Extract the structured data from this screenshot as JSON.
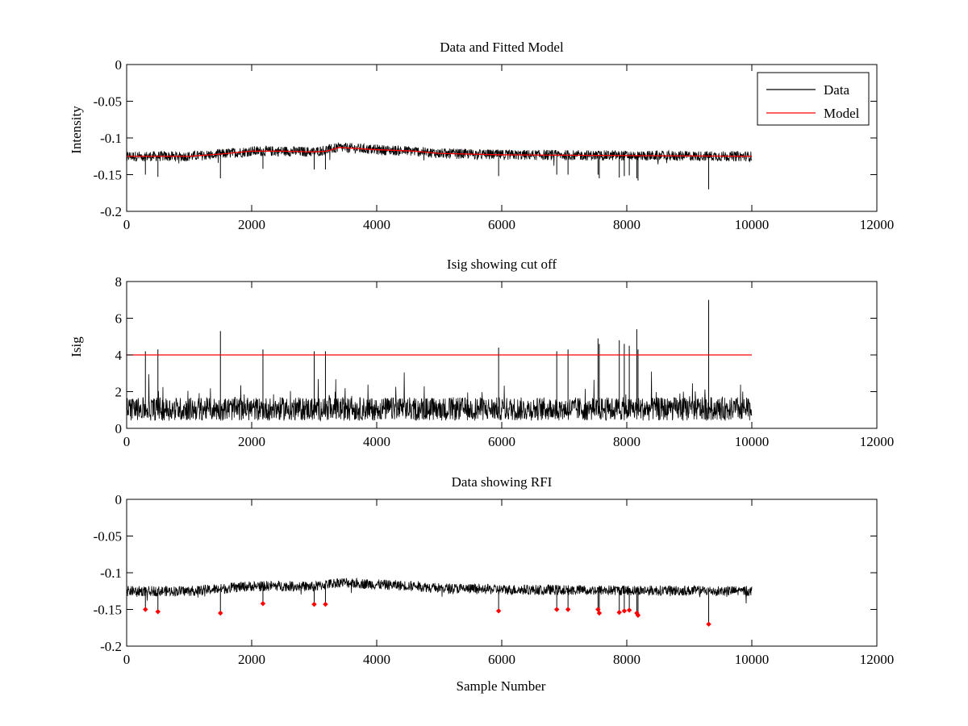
{
  "figure": {
    "xlabel": "Sample Number"
  },
  "chart_data": [
    {
      "type": "line",
      "title": "Data and Fitted Model",
      "xlabel": "",
      "ylabel": "Intensity",
      "xlim": [
        0,
        12000
      ],
      "ylim": [
        -0.2,
        0
      ],
      "xticks": [
        0,
        2000,
        4000,
        6000,
        8000,
        10000,
        12000
      ],
      "yticks": [
        0,
        -0.05,
        -0.1,
        -0.15,
        -0.2
      ],
      "xtick_labels": [
        "0",
        "2000",
        "4000",
        "6000",
        "8000",
        "10000",
        "12000"
      ],
      "ytick_labels": [
        "0",
        "-0.05",
        "-0.1",
        "-0.15",
        "-0.2"
      ],
      "legend": {
        "placement": "top-right",
        "entries": [
          "Data",
          "Model"
        ]
      },
      "series": [
        {
          "name": "Data",
          "color": "#000000",
          "render": "noise",
          "x_range": [
            0,
            10000
          ],
          "baseline": [
            [
              0,
              -0.125
            ],
            [
              1000,
              -0.125
            ],
            [
              1500,
              -0.122
            ],
            [
              2000,
              -0.118
            ],
            [
              2500,
              -0.118
            ],
            [
              3000,
              -0.119
            ],
            [
              3400,
              -0.113
            ],
            [
              4000,
              -0.116
            ],
            [
              4600,
              -0.118
            ],
            [
              5000,
              -0.121
            ],
            [
              6000,
              -0.123
            ],
            [
              8000,
              -0.124
            ],
            [
              10000,
              -0.125
            ]
          ],
          "noise_amplitude": 0.007,
          "spikes": [
            [
              300,
              -0.15
            ],
            [
              500,
              -0.153
            ],
            [
              1500,
              -0.155
            ],
            [
              2180,
              -0.142
            ],
            [
              3000,
              -0.143
            ],
            [
              3180,
              -0.143
            ],
            [
              5950,
              -0.152
            ],
            [
              6880,
              -0.15
            ],
            [
              7060,
              -0.15
            ],
            [
              7540,
              -0.15
            ],
            [
              7560,
              -0.155
            ],
            [
              7880,
              -0.154
            ],
            [
              7960,
              -0.152
            ],
            [
              8040,
              -0.151
            ],
            [
              8160,
              -0.155
            ],
            [
              8180,
              -0.158
            ],
            [
              9310,
              -0.17
            ]
          ]
        },
        {
          "name": "Model",
          "color": "#ff0000",
          "x": [
            0,
            1000,
            1500,
            2000,
            2500,
            3000,
            3200,
            3400,
            4000,
            4600,
            5000,
            6000,
            8000,
            10000
          ],
          "values": [
            -0.125,
            -0.125,
            -0.122,
            -0.118,
            -0.118,
            -0.119,
            -0.118,
            -0.113,
            -0.116,
            -0.118,
            -0.121,
            -0.123,
            -0.124,
            -0.125
          ]
        }
      ]
    },
    {
      "type": "line",
      "title": "Isig showing cut off",
      "xlabel": "",
      "ylabel": "Isig",
      "xlim": [
        0,
        12000
      ],
      "ylim": [
        0,
        8
      ],
      "xticks": [
        0,
        2000,
        4000,
        6000,
        8000,
        10000,
        12000
      ],
      "yticks": [
        0,
        2,
        4,
        6,
        8
      ],
      "xtick_labels": [
        "0",
        "2000",
        "4000",
        "6000",
        "8000",
        "10000",
        "12000"
      ],
      "ytick_labels": [
        "0",
        "2",
        "4",
        "6",
        "8"
      ],
      "series": [
        {
          "color": "#000000",
          "render": "noise",
          "x_range": [
            0,
            10000
          ],
          "baseline": [
            [
              0,
              0.8
            ],
            [
              10000,
              0.8
            ]
          ],
          "noise_amplitude": 0.8,
          "spikes": [
            [
              300,
              4.2
            ],
            [
              500,
              4.3
            ],
            [
              1500,
              5.3
            ],
            [
              2180,
              4.3
            ],
            [
              3000,
              4.2
            ],
            [
              3180,
              4.2
            ],
            [
              5950,
              4.4
            ],
            [
              6880,
              4.2
            ],
            [
              7060,
              4.3
            ],
            [
              7540,
              4.9
            ],
            [
              7560,
              4.6
            ],
            [
              7880,
              4.8
            ],
            [
              7960,
              4.6
            ],
            [
              8040,
              4.5
            ],
            [
              8160,
              5.4
            ],
            [
              8180,
              4.3
            ],
            [
              9310,
              7.0
            ]
          ]
        },
        {
          "color": "#ff0000",
          "x": [
            0,
            10000
          ],
          "values": [
            4,
            4
          ]
        }
      ]
    },
    {
      "type": "line",
      "title": "Data showing RFI",
      "xlabel": "Sample Number",
      "ylabel": "",
      "xlim": [
        0,
        12000
      ],
      "ylim": [
        -0.2,
        0
      ],
      "xticks": [
        0,
        2000,
        4000,
        6000,
        8000,
        10000,
        12000
      ],
      "yticks": [
        0,
        -0.05,
        -0.1,
        -0.15,
        -0.2
      ],
      "xtick_labels": [
        "0",
        "2000",
        "4000",
        "6000",
        "8000",
        "10000",
        "12000"
      ],
      "ytick_labels": [
        "0",
        "-0.05",
        "-0.1",
        "-0.15",
        "-0.2"
      ],
      "series": [
        {
          "color": "#000000",
          "render": "noise",
          "x_range": [
            0,
            10000
          ],
          "baseline": [
            [
              0,
              -0.125
            ],
            [
              1000,
              -0.125
            ],
            [
              1500,
              -0.122
            ],
            [
              2000,
              -0.118
            ],
            [
              2500,
              -0.118
            ],
            [
              3000,
              -0.119
            ],
            [
              3400,
              -0.113
            ],
            [
              4000,
              -0.116
            ],
            [
              4600,
              -0.118
            ],
            [
              5000,
              -0.121
            ],
            [
              6000,
              -0.123
            ],
            [
              8000,
              -0.124
            ],
            [
              10000,
              -0.125
            ]
          ],
          "noise_amplitude": 0.007,
          "spikes": [
            [
              300,
              -0.15
            ],
            [
              500,
              -0.153
            ],
            [
              1500,
              -0.155
            ],
            [
              2180,
              -0.142
            ],
            [
              3000,
              -0.143
            ],
            [
              3180,
              -0.143
            ],
            [
              5950,
              -0.152
            ],
            [
              6880,
              -0.15
            ],
            [
              7060,
              -0.15
            ],
            [
              7540,
              -0.15
            ],
            [
              7560,
              -0.155
            ],
            [
              7880,
              -0.154
            ],
            [
              7960,
              -0.152
            ],
            [
              8040,
              -0.151
            ],
            [
              8160,
              -0.155
            ],
            [
              8180,
              -0.158
            ],
            [
              9310,
              -0.17
            ]
          ]
        }
      ],
      "markers": {
        "color": "#ff0000",
        "shape": "diamond",
        "points": [
          [
            300,
            -0.15
          ],
          [
            500,
            -0.153
          ],
          [
            1500,
            -0.155
          ],
          [
            2180,
            -0.142
          ],
          [
            3000,
            -0.143
          ],
          [
            3180,
            -0.143
          ],
          [
            5950,
            -0.152
          ],
          [
            6880,
            -0.15
          ],
          [
            7060,
            -0.15
          ],
          [
            7540,
            -0.15
          ],
          [
            7560,
            -0.155
          ],
          [
            7880,
            -0.154
          ],
          [
            7960,
            -0.152
          ],
          [
            8040,
            -0.151
          ],
          [
            8160,
            -0.155
          ],
          [
            8180,
            -0.158
          ],
          [
            9310,
            -0.17
          ]
        ]
      }
    }
  ]
}
